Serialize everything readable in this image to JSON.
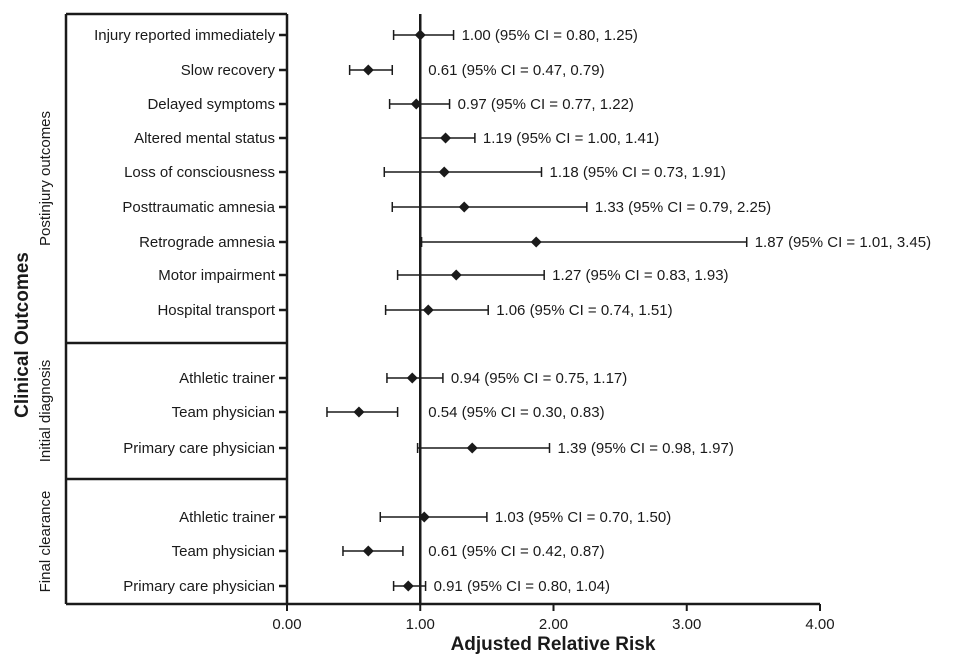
{
  "chart_data": {
    "type": "forest",
    "xlabel": "Adjusted Relative Risk",
    "ylabel": "Clinical Outcomes",
    "xlim": [
      0,
      4
    ],
    "xticks": [
      "0.00",
      "1.00",
      "2.00",
      "3.00",
      "4.00"
    ],
    "reference_line": 1.0,
    "groups": [
      {
        "name": "Postinjury outcomes",
        "rows": [
          {
            "label": "Injury reported immediately",
            "rr": 1.0,
            "lo": 0.8,
            "hi": 1.25,
            "text": "1.00 (95% CI = 0.80, 1.25)"
          },
          {
            "label": "Slow recovery",
            "rr": 0.61,
            "lo": 0.47,
            "hi": 0.79,
            "text": "0.61 (95% CI = 0.47, 0.79)"
          },
          {
            "label": "Delayed symptoms",
            "rr": 0.97,
            "lo": 0.77,
            "hi": 1.22,
            "text": "0.97 (95% CI = 0.77, 1.22)"
          },
          {
            "label": "Altered mental status",
            "rr": 1.19,
            "lo": 1.0,
            "hi": 1.41,
            "text": "1.19 (95% CI = 1.00, 1.41)"
          },
          {
            "label": "Loss of consciousness",
            "rr": 1.18,
            "lo": 0.73,
            "hi": 1.91,
            "text": "1.18 (95% CI = 0.73, 1.91)"
          },
          {
            "label": "Posttraumatic amnesia",
            "rr": 1.33,
            "lo": 0.79,
            "hi": 2.25,
            "text": "1.33 (95% CI = 0.79, 2.25)"
          },
          {
            "label": "Retrograde amnesia",
            "rr": 1.87,
            "lo": 1.01,
            "hi": 3.45,
            "text": "1.87 (95% CI = 1.01, 3.45)"
          },
          {
            "label": "Motor impairment",
            "rr": 1.27,
            "lo": 0.83,
            "hi": 1.93,
            "text": "1.27 (95% CI = 0.83, 1.93)"
          },
          {
            "label": "Hospital transport",
            "rr": 1.06,
            "lo": 0.74,
            "hi": 1.51,
            "text": "1.06 (95% CI = 0.74, 1.51)"
          }
        ]
      },
      {
        "name": "Initial diagnosis",
        "rows": [
          {
            "label": "Athletic trainer",
            "rr": 0.94,
            "lo": 0.75,
            "hi": 1.17,
            "text": "0.94 (95% CI = 0.75, 1.17)"
          },
          {
            "label": "Team physician",
            "rr": 0.54,
            "lo": 0.3,
            "hi": 0.83,
            "text": "0.54 (95% CI = 0.30, 0.83)"
          },
          {
            "label": "Primary care physician",
            "rr": 1.39,
            "lo": 0.98,
            "hi": 1.97,
            "text": "1.39 (95% CI = 0.98, 1.97)"
          }
        ]
      },
      {
        "name": "Final clearance",
        "rows": [
          {
            "label": "Athletic trainer",
            "rr": 1.03,
            "lo": 0.7,
            "hi": 1.5,
            "text": "1.03 (95% CI = 0.70, 1.50)"
          },
          {
            "label": "Team physician",
            "rr": 0.61,
            "lo": 0.42,
            "hi": 0.87,
            "text": "0.61 (95% CI = 0.42, 0.87)"
          },
          {
            "label": "Primary care physician",
            "rr": 0.91,
            "lo": 0.8,
            "hi": 1.04,
            "text": "0.91 (95% CI = 0.80, 1.04)"
          }
        ]
      }
    ]
  }
}
